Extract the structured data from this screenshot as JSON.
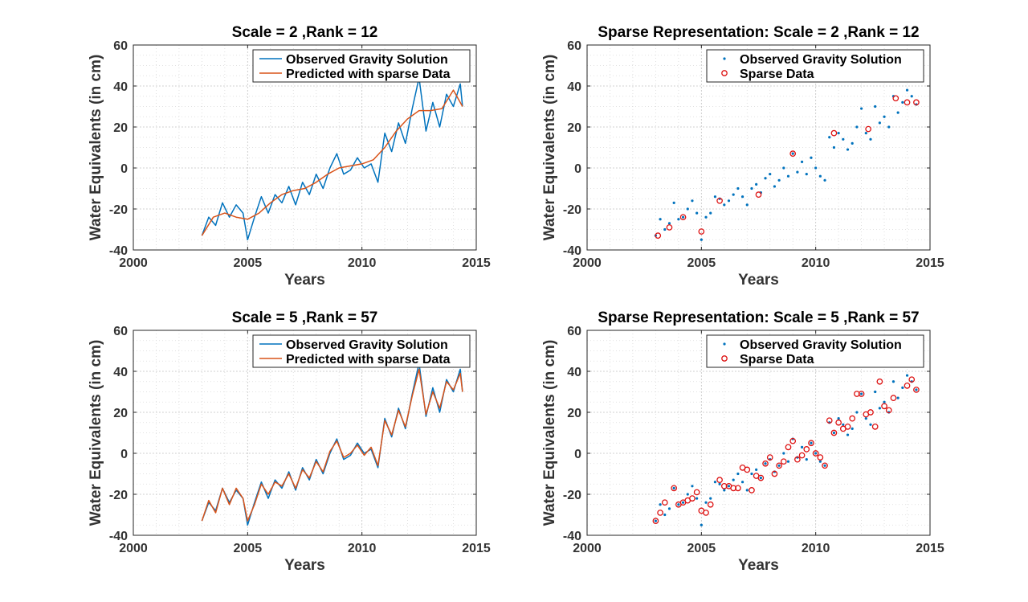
{
  "colors": {
    "observed": "#0072bd",
    "predicted": "#d95319",
    "sparse_marker": "#dd1111"
  },
  "chart_data": [
    {
      "type": "line",
      "title": "Scale = 2 ,Rank = 12",
      "xlabel": "Years",
      "ylabel": "Water Equivalents (in cm)",
      "xlim": [
        2000,
        2015
      ],
      "ylim": [
        -40,
        60
      ],
      "xticks": [
        2000,
        2005,
        2010,
        2015
      ],
      "yticks": [
        -40,
        -20,
        0,
        20,
        40,
        60
      ],
      "grid": true,
      "legend_position": "top-right",
      "series": [
        {
          "name": "Observed Gravity Solution",
          "style": "line",
          "color": "#0072bd",
          "x": [
            2003.0,
            2003.3,
            2003.6,
            2003.9,
            2004.2,
            2004.5,
            2004.8,
            2005.0,
            2005.3,
            2005.6,
            2005.9,
            2006.2,
            2006.5,
            2006.8,
            2007.1,
            2007.4,
            2007.7,
            2008.0,
            2008.3,
            2008.6,
            2008.9,
            2009.2,
            2009.5,
            2009.8,
            2010.1,
            2010.4,
            2010.7,
            2011.0,
            2011.3,
            2011.6,
            2011.9,
            2012.2,
            2012.5,
            2012.8,
            2013.1,
            2013.4,
            2013.7,
            2014.0,
            2014.3,
            2014.4
          ],
          "y": [
            -33,
            -24,
            -28,
            -17,
            -24,
            -18,
            -22,
            -35,
            -24,
            -14,
            -22,
            -13,
            -17,
            -9,
            -18,
            -7,
            -13,
            -3,
            -10,
            0,
            7,
            -3,
            -1,
            5,
            0,
            2,
            -7,
            17,
            8,
            22,
            12,
            29,
            44,
            18,
            32,
            20,
            36,
            30,
            41,
            30
          ]
        },
        {
          "name": "Predicted with sparse Data",
          "style": "line",
          "color": "#d95319",
          "x": [
            2003.0,
            2003.5,
            2004.0,
            2004.5,
            2005.0,
            2005.5,
            2006.0,
            2006.5,
            2007.0,
            2007.5,
            2008.0,
            2008.5,
            2009.0,
            2009.5,
            2010.0,
            2010.5,
            2011.0,
            2011.5,
            2012.0,
            2012.5,
            2013.0,
            2013.5,
            2014.0,
            2014.4
          ],
          "y": [
            -33,
            -24,
            -22,
            -24,
            -25,
            -22,
            -17,
            -13,
            -11,
            -10,
            -7,
            -3,
            0,
            1,
            2,
            4,
            10,
            18,
            24,
            28,
            28,
            29,
            38,
            30
          ]
        }
      ]
    },
    {
      "type": "scatter",
      "title": "Sparse Representation: Scale = 2 ,Rank = 12",
      "xlabel": "Years",
      "ylabel": "Water Equivalents (in cm)",
      "xlim": [
        2000,
        2015
      ],
      "ylim": [
        -40,
        60
      ],
      "xticks": [
        2000,
        2005,
        2010,
        2015
      ],
      "yticks": [
        -40,
        -20,
        0,
        20,
        40,
        60
      ],
      "grid": true,
      "legend_position": "top-right",
      "series": [
        {
          "name": "Observed Gravity Solution",
          "style": "dot",
          "color": "#0072bd",
          "x": [
            2003.0,
            2003.2,
            2003.4,
            2003.6,
            2003.8,
            2004.0,
            2004.2,
            2004.4,
            2004.6,
            2004.8,
            2005.0,
            2005.2,
            2005.4,
            2005.6,
            2005.8,
            2006.0,
            2006.2,
            2006.4,
            2006.6,
            2006.8,
            2007.0,
            2007.2,
            2007.4,
            2007.6,
            2007.8,
            2008.0,
            2008.2,
            2008.4,
            2008.6,
            2008.8,
            2009.0,
            2009.2,
            2009.4,
            2009.6,
            2009.8,
            2010.0,
            2010.2,
            2010.4,
            2010.6,
            2010.8,
            2011.0,
            2011.2,
            2011.4,
            2011.6,
            2011.8,
            2012.0,
            2012.2,
            2012.4,
            2012.6,
            2012.8,
            2013.0,
            2013.2,
            2013.4,
            2013.6,
            2013.8,
            2014.0,
            2014.2,
            2014.4
          ],
          "y": [
            -33,
            -25,
            -30,
            -27,
            -17,
            -25,
            -24,
            -20,
            -16,
            -22,
            -35,
            -24,
            -22,
            -14,
            -15,
            -18,
            -16,
            -13,
            -10,
            -14,
            -18,
            -10,
            -8,
            -12,
            -5,
            -3,
            -9,
            -6,
            0,
            -4,
            7,
            -2,
            3,
            -3,
            5,
            0,
            -4,
            -6,
            15,
            10,
            17,
            14,
            9,
            12,
            20,
            29,
            17,
            14,
            30,
            22,
            25,
            20,
            35,
            27,
            32,
            38,
            35,
            31
          ]
        },
        {
          "name": "Sparse Data",
          "style": "circle",
          "color": "#dd1111",
          "x": [
            2003.1,
            2003.6,
            2004.2,
            2005.0,
            2005.8,
            2007.5,
            2009.0,
            2010.8,
            2012.3,
            2013.5,
            2014.0,
            2014.4
          ],
          "y": [
            -33,
            -29,
            -24,
            -31,
            -16,
            -13,
            7,
            17,
            19,
            34,
            32,
            32
          ]
        }
      ]
    },
    {
      "type": "line",
      "title": "Scale = 5 ,Rank = 57",
      "xlabel": "Years",
      "ylabel": "Water Equivalents (in cm)",
      "xlim": [
        2000,
        2015
      ],
      "ylim": [
        -40,
        60
      ],
      "xticks": [
        2000,
        2005,
        2010,
        2015
      ],
      "yticks": [
        -40,
        -20,
        0,
        20,
        40,
        60
      ],
      "grid": true,
      "legend_position": "top-right",
      "series": [
        {
          "name": "Observed Gravity Solution",
          "style": "line",
          "color": "#0072bd",
          "x": [
            2003.0,
            2003.3,
            2003.6,
            2003.9,
            2004.2,
            2004.5,
            2004.8,
            2005.0,
            2005.3,
            2005.6,
            2005.9,
            2006.2,
            2006.5,
            2006.8,
            2007.1,
            2007.4,
            2007.7,
            2008.0,
            2008.3,
            2008.6,
            2008.9,
            2009.2,
            2009.5,
            2009.8,
            2010.1,
            2010.4,
            2010.7,
            2011.0,
            2011.3,
            2011.6,
            2011.9,
            2012.2,
            2012.5,
            2012.8,
            2013.1,
            2013.4,
            2013.7,
            2014.0,
            2014.3,
            2014.4
          ],
          "y": [
            -33,
            -24,
            -28,
            -17,
            -24,
            -18,
            -22,
            -35,
            -24,
            -14,
            -22,
            -13,
            -17,
            -9,
            -18,
            -7,
            -13,
            -3,
            -10,
            0,
            7,
            -3,
            -1,
            5,
            0,
            2,
            -7,
            17,
            8,
            22,
            12,
            29,
            44,
            18,
            32,
            20,
            36,
            30,
            41,
            30
          ]
        },
        {
          "name": "Predicted with sparse Data",
          "style": "line",
          "color": "#d95319",
          "x": [
            2003.0,
            2003.3,
            2003.6,
            2003.9,
            2004.2,
            2004.5,
            2004.8,
            2005.0,
            2005.3,
            2005.6,
            2005.9,
            2006.2,
            2006.5,
            2006.8,
            2007.1,
            2007.4,
            2007.7,
            2008.0,
            2008.3,
            2008.6,
            2008.9,
            2009.2,
            2009.5,
            2009.8,
            2010.1,
            2010.4,
            2010.7,
            2011.0,
            2011.3,
            2011.6,
            2011.9,
            2012.2,
            2012.5,
            2012.8,
            2013.1,
            2013.4,
            2013.7,
            2014.0,
            2014.3,
            2014.4
          ],
          "y": [
            -33,
            -23,
            -29,
            -17,
            -25,
            -17,
            -22,
            -33,
            -25,
            -15,
            -20,
            -14,
            -16,
            -10,
            -17,
            -8,
            -12,
            -4,
            -9,
            1,
            6,
            -2,
            0,
            4,
            -1,
            3,
            -6,
            16,
            9,
            21,
            13,
            28,
            41,
            19,
            30,
            22,
            35,
            31,
            39,
            30
          ]
        }
      ]
    },
    {
      "type": "scatter",
      "title": "Sparse Representation: Scale = 5 ,Rank = 57",
      "xlabel": "Years",
      "ylabel": "Water Equivalents (in cm)",
      "xlim": [
        2000,
        2015
      ],
      "ylim": [
        -40,
        60
      ],
      "xticks": [
        2000,
        2005,
        2010,
        2015
      ],
      "yticks": [
        -40,
        -20,
        0,
        20,
        40,
        60
      ],
      "grid": true,
      "legend_position": "top-right",
      "series": [
        {
          "name": "Observed Gravity Solution",
          "style": "dot",
          "color": "#0072bd",
          "x": [
            2003.0,
            2003.2,
            2003.4,
            2003.6,
            2003.8,
            2004.0,
            2004.2,
            2004.4,
            2004.6,
            2004.8,
            2005.0,
            2005.2,
            2005.4,
            2005.6,
            2005.8,
            2006.0,
            2006.2,
            2006.4,
            2006.6,
            2006.8,
            2007.0,
            2007.2,
            2007.4,
            2007.6,
            2007.8,
            2008.0,
            2008.2,
            2008.4,
            2008.6,
            2008.8,
            2009.0,
            2009.2,
            2009.4,
            2009.6,
            2009.8,
            2010.0,
            2010.2,
            2010.4,
            2010.6,
            2010.8,
            2011.0,
            2011.2,
            2011.4,
            2011.6,
            2011.8,
            2012.0,
            2012.2,
            2012.4,
            2012.6,
            2012.8,
            2013.0,
            2013.2,
            2013.4,
            2013.6,
            2013.8,
            2014.0,
            2014.2,
            2014.4
          ],
          "y": [
            -33,
            -25,
            -30,
            -27,
            -17,
            -25,
            -24,
            -20,
            -16,
            -22,
            -35,
            -24,
            -22,
            -14,
            -15,
            -18,
            -16,
            -13,
            -10,
            -14,
            -18,
            -10,
            -8,
            -12,
            -5,
            -3,
            -9,
            -6,
            0,
            -4,
            7,
            -2,
            3,
            -3,
            5,
            0,
            -4,
            -6,
            15,
            10,
            17,
            14,
            9,
            12,
            20,
            29,
            17,
            14,
            30,
            22,
            25,
            20,
            35,
            27,
            32,
            38,
            35,
            31
          ]
        },
        {
          "name": "Sparse Data",
          "style": "circle",
          "color": "#dd1111",
          "x": [
            2003.0,
            2003.2,
            2003.4,
            2003.8,
            2004.0,
            2004.2,
            2004.4,
            2004.6,
            2004.8,
            2005.0,
            2005.2,
            2005.4,
            2005.8,
            2006.0,
            2006.2,
            2006.4,
            2006.6,
            2006.8,
            2007.0,
            2007.2,
            2007.4,
            2007.6,
            2007.8,
            2008.0,
            2008.2,
            2008.4,
            2008.6,
            2008.8,
            2009.0,
            2009.2,
            2009.4,
            2009.6,
            2009.8,
            2010.0,
            2010.2,
            2010.4,
            2010.6,
            2010.8,
            2011.0,
            2011.2,
            2011.4,
            2011.6,
            2011.8,
            2012.0,
            2012.2,
            2012.4,
            2012.6,
            2012.8,
            2013.0,
            2013.2,
            2013.4,
            2014.0,
            2014.2,
            2014.4
          ],
          "y": [
            -33,
            -29,
            -24,
            -17,
            -25,
            -24,
            -23,
            -22,
            -19,
            -28,
            -29,
            -25,
            -13,
            -16,
            -16,
            -17,
            -17,
            -7,
            -8,
            -18,
            -11,
            -12,
            -5,
            -2,
            -10,
            -6,
            -4,
            3,
            6,
            -3,
            -1,
            2,
            5,
            0,
            -2,
            -6,
            16,
            10,
            15,
            12,
            13,
            17,
            29,
            29,
            19,
            20,
            13,
            35,
            23,
            21,
            27,
            33,
            36,
            31
          ]
        }
      ]
    }
  ]
}
